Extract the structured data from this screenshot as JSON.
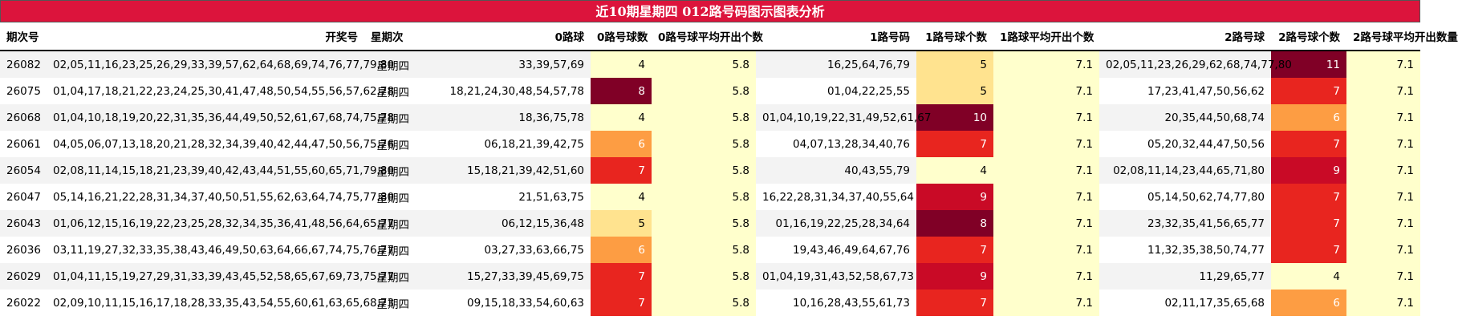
{
  "title": "近10期星期四 012路号码图示图表分析",
  "chart_data": {
    "type": "table",
    "columns": [
      "期次号",
      "开奖号",
      "星期次",
      "0路球",
      "0路号球数",
      "0路号球平均开出个数",
      "1路号码",
      "1路号球个数",
      "1路球平均开出个数",
      "2路号球",
      "2路号球个数",
      "2路号球平均开出数量"
    ],
    "rows": [
      [
        "26082",
        "02,05,11,16,23,25,26,29,33,39,57,62,64,68,69,74,76,77,79,80",
        "星期四",
        "33,39,57,69",
        4,
        "5.8",
        "16,25,64,76,79",
        5,
        "7.1",
        "02,05,11,23,26,29,62,68,74,77,80",
        11,
        "7.1"
      ],
      [
        "26075",
        "01,04,17,18,21,22,23,24,25,30,41,47,48,50,54,55,56,57,62,78",
        "星期四",
        "18,21,24,30,48,54,57,78",
        8,
        "5.8",
        "01,04,22,25,55",
        5,
        "7.1",
        "17,23,41,47,50,56,62",
        7,
        "7.1"
      ],
      [
        "26068",
        "01,04,10,18,19,20,22,31,35,36,44,49,50,52,61,67,68,74,75,78",
        "星期四",
        "18,36,75,78",
        4,
        "5.8",
        "01,04,10,19,22,31,49,52,61,67",
        10,
        "7.1",
        "20,35,44,50,68,74",
        6,
        "7.1"
      ],
      [
        "26061",
        "04,05,06,07,13,18,20,21,28,32,34,39,40,42,44,47,50,56,75,76",
        "星期四",
        "06,18,21,39,42,75",
        6,
        "5.8",
        "04,07,13,28,34,40,76",
        7,
        "7.1",
        "05,20,32,44,47,50,56",
        7,
        "7.1"
      ],
      [
        "26054",
        "02,08,11,14,15,18,21,23,39,40,42,43,44,51,55,60,65,71,79,80",
        "星期四",
        "15,18,21,39,42,51,60",
        7,
        "5.8",
        "40,43,55,79",
        4,
        "7.1",
        "02,08,11,14,23,44,65,71,80",
        9,
        "7.1"
      ],
      [
        "26047",
        "05,14,16,21,22,28,31,34,37,40,50,51,55,62,63,64,74,75,77,80",
        "星期四",
        "21,51,63,75",
        4,
        "5.8",
        "16,22,28,31,34,37,40,55,64",
        9,
        "7.1",
        "05,14,50,62,74,77,80",
        7,
        "7.1"
      ],
      [
        "26043",
        "01,06,12,15,16,19,22,23,25,28,32,34,35,36,41,48,56,64,65,77",
        "星期四",
        "06,12,15,36,48",
        5,
        "5.8",
        "01,16,19,22,25,28,34,64",
        8,
        "7.1",
        "23,32,35,41,56,65,77",
        7,
        "7.1"
      ],
      [
        "26036",
        "03,11,19,27,32,33,35,38,43,46,49,50,63,64,66,67,74,75,76,77",
        "星期四",
        "03,27,33,63,66,75",
        6,
        "5.8",
        "19,43,46,49,64,67,76",
        7,
        "7.1",
        "11,32,35,38,50,74,77",
        7,
        "7.1"
      ],
      [
        "26029",
        "01,04,11,15,19,27,29,31,33,39,43,45,52,58,65,67,69,73,75,77",
        "星期四",
        "15,27,33,39,45,69,75",
        7,
        "5.8",
        "01,04,19,31,43,52,58,67,73",
        9,
        "7.1",
        "11,29,65,77",
        4,
        "7.1"
      ],
      [
        "26022",
        "02,09,10,11,15,16,17,18,28,33,35,43,54,55,60,61,63,65,68,73",
        "星期四",
        "09,15,18,33,54,60,63",
        7,
        "5.8",
        "10,16,28,43,55,61,73",
        7,
        "7.1",
        "02,11,17,35,65,68",
        6,
        "7.1"
      ]
    ],
    "heat_colors": {
      "4": "#ffffcc",
      "5": "#ffe38f",
      "6": "#fd9d43",
      "7": "#e8251f",
      "8": "#800026",
      "9": "#c90a26",
      "10": "#800026",
      "11": "#800026"
    }
  }
}
